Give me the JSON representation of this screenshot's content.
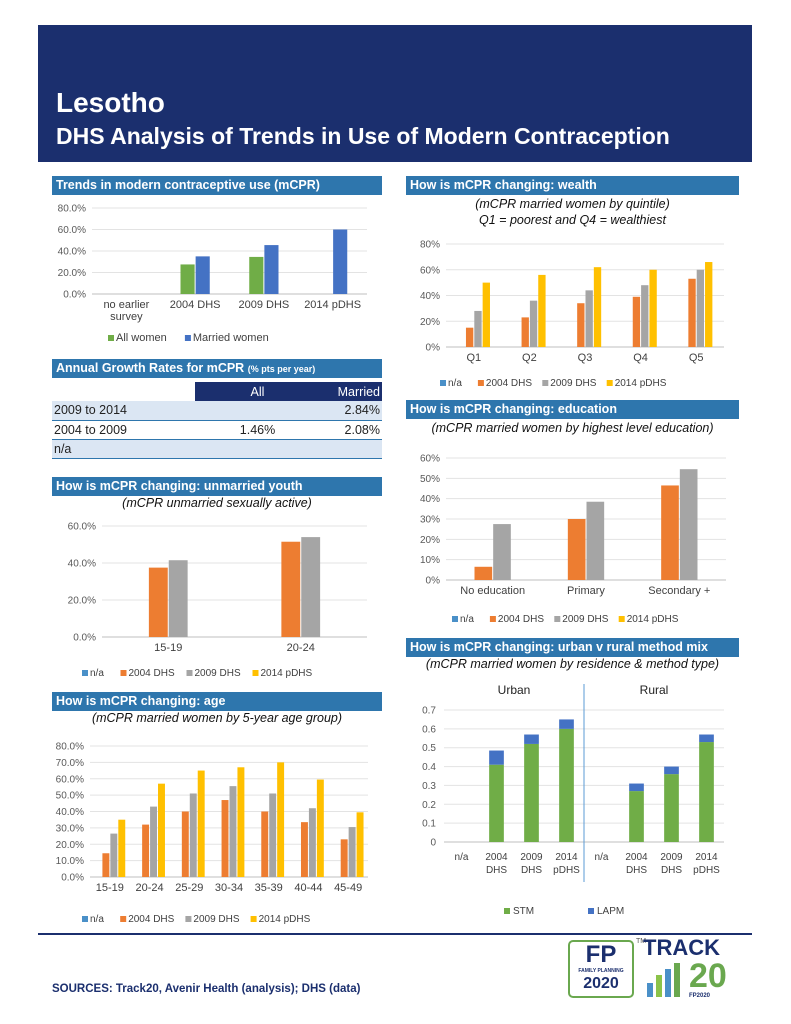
{
  "header": {
    "country": "Lesotho",
    "subtitle": "DHS Analysis of Trends in Use of Modern Contraception"
  },
  "sections": {
    "trends": "Trends in modern contraceptive use (mCPR)",
    "growth": "Annual Growth Rates for mCPR",
    "growth_unit": "(% pts per year)",
    "youth": "How is mCPR changing: unmarried youth",
    "youth_sub": "(mCPR unmarried sexually active)",
    "age": "How is mCPR changing: age",
    "age_sub": "(mCPR married women by 5-year age group)",
    "wealth": "How is mCPR changing: wealth",
    "wealth_sub1": "(mCPR married women by quintile)",
    "wealth_sub2": "Q1 = poorest and Q4 = wealthiest",
    "education": "How is mCPR changing: education",
    "education_sub": "(mCPR married women by highest level education)",
    "urban": "How is mCPR changing: urban v rural method mix",
    "urban_sub": "(mCPR married women by residence & method type)"
  },
  "growth_table": {
    "headers": [
      "",
      "All",
      "Married"
    ],
    "rows": [
      [
        "2009 to 2014",
        "",
        "2.84%"
      ],
      [
        "2004 to 2009",
        "1.46%",
        "2.08%"
      ],
      [
        "n/a",
        "",
        ""
      ]
    ]
  },
  "colors": {
    "navy": "#1b2f6e",
    "sec": "#2e76ad",
    "na": "#4a90c8",
    "dhs2004": "#ed7d31",
    "dhs2009": "#a5a5a5",
    "pdhs2014": "#ffc000",
    "all": "#70ad47",
    "married": "#4472c4",
    "stm": "#70ad47",
    "lapm": "#4472c4"
  },
  "chart_data": [
    {
      "id": "trends",
      "type": "bar",
      "categories": [
        "no earlier survey",
        "2004 DHS",
        "2009 DHS",
        "2014 pDHS"
      ],
      "series": [
        {
          "name": "All women",
          "values": [
            null,
            27.5,
            34.5,
            null
          ]
        },
        {
          "name": "Married women",
          "values": [
            null,
            35.0,
            45.5,
            60.0
          ]
        }
      ],
      "ylim": [
        0,
        80
      ],
      "yticks": [
        "0.0%",
        "20.0%",
        "40.0%",
        "60.0%",
        "80.0%"
      ]
    },
    {
      "id": "youth",
      "type": "bar",
      "categories": [
        "15-19",
        "20-24"
      ],
      "series": [
        {
          "name": "n/a",
          "values": [
            null,
            null
          ]
        },
        {
          "name": "2004 DHS",
          "values": [
            37.5,
            51.5
          ]
        },
        {
          "name": "2009 DHS",
          "values": [
            41.5,
            54.0
          ]
        },
        {
          "name": "2014 pDHS",
          "values": [
            null,
            null
          ]
        }
      ],
      "ylim": [
        0,
        60
      ],
      "yticks": [
        "0.0%",
        "20.0%",
        "40.0%",
        "60.0%"
      ]
    },
    {
      "id": "age",
      "type": "bar",
      "categories": [
        "15-19",
        "20-24",
        "25-29",
        "30-34",
        "35-39",
        "40-44",
        "45-49"
      ],
      "series": [
        {
          "name": "n/a",
          "values": [
            null,
            null,
            null,
            null,
            null,
            null,
            null
          ]
        },
        {
          "name": "2004 DHS",
          "values": [
            14.5,
            32.0,
            40.0,
            47.0,
            40.0,
            33.5,
            23.0
          ]
        },
        {
          "name": "2009 DHS",
          "values": [
            26.5,
            43.0,
            51.0,
            55.5,
            51.0,
            42.0,
            30.5
          ]
        },
        {
          "name": "2014 pDHS",
          "values": [
            35.0,
            57.0,
            65.0,
            67.0,
            70.0,
            59.5,
            39.5
          ]
        }
      ],
      "ylim": [
        0,
        80
      ],
      "yticks": [
        "0.0%",
        "10.0%",
        "20.0%",
        "30.0%",
        "40.0%",
        "50.0%",
        "60.0%",
        "70.0%",
        "80.0%"
      ]
    },
    {
      "id": "wealth",
      "type": "bar",
      "categories": [
        "Q1",
        "Q2",
        "Q3",
        "Q4",
        "Q5"
      ],
      "series": [
        {
          "name": "n/a",
          "values": [
            null,
            null,
            null,
            null,
            null
          ]
        },
        {
          "name": "2004 DHS",
          "values": [
            15,
            23,
            34,
            39,
            53
          ]
        },
        {
          "name": "2009 DHS",
          "values": [
            28,
            36,
            44,
            48,
            60
          ]
        },
        {
          "name": "2014 pDHS",
          "values": [
            50,
            56,
            62,
            60,
            66
          ]
        }
      ],
      "ylim": [
        0,
        80
      ],
      "yticks": [
        "0%",
        "20%",
        "40%",
        "60%",
        "80%"
      ]
    },
    {
      "id": "education",
      "type": "bar",
      "categories": [
        "No education",
        "Primary",
        "Secondary +"
      ],
      "series": [
        {
          "name": "n/a",
          "values": [
            null,
            null,
            null
          ]
        },
        {
          "name": "2004 DHS",
          "values": [
            6.5,
            30.0,
            46.5
          ]
        },
        {
          "name": "2009 DHS",
          "values": [
            27.5,
            38.5,
            54.5
          ]
        },
        {
          "name": "2014 pDHS",
          "values": [
            null,
            null,
            null
          ]
        }
      ],
      "ylim": [
        0,
        60
      ],
      "yticks": [
        "0%",
        "10%",
        "20%",
        "30%",
        "40%",
        "50%",
        "60%"
      ]
    },
    {
      "id": "urban",
      "type": "stacked-bar",
      "groups": [
        "Urban",
        "Rural"
      ],
      "categories": [
        "n/a",
        "2004 DHS",
        "2009 DHS",
        "2014 pDHS",
        "n/a",
        "2004 DHS",
        "2009 DHS",
        "2014 pDHS"
      ],
      "series": [
        {
          "name": "STM",
          "values": [
            null,
            0.41,
            0.52,
            0.6,
            null,
            0.27,
            0.36,
            0.53
          ]
        },
        {
          "name": "LAPM",
          "values": [
            null,
            0.075,
            0.05,
            0.05,
            null,
            0.04,
            0.04,
            0.04
          ]
        }
      ],
      "ylim": [
        0,
        0.7
      ],
      "yticks": [
        "0",
        "0.1",
        "0.2",
        "0.3",
        "0.4",
        "0.5",
        "0.6",
        "0.7"
      ]
    }
  ],
  "logos": {
    "fp_top": "FP",
    "fp_mid": "FAMILY PLANNING",
    "fp_bottom": "2020",
    "track": "TRACK",
    "track_num": "20",
    "tm": "TM",
    "fp2020": "FP2020"
  },
  "footer": {
    "sources": "SOURCES: Track20, Avenir Health (analysis); DHS (data)"
  }
}
